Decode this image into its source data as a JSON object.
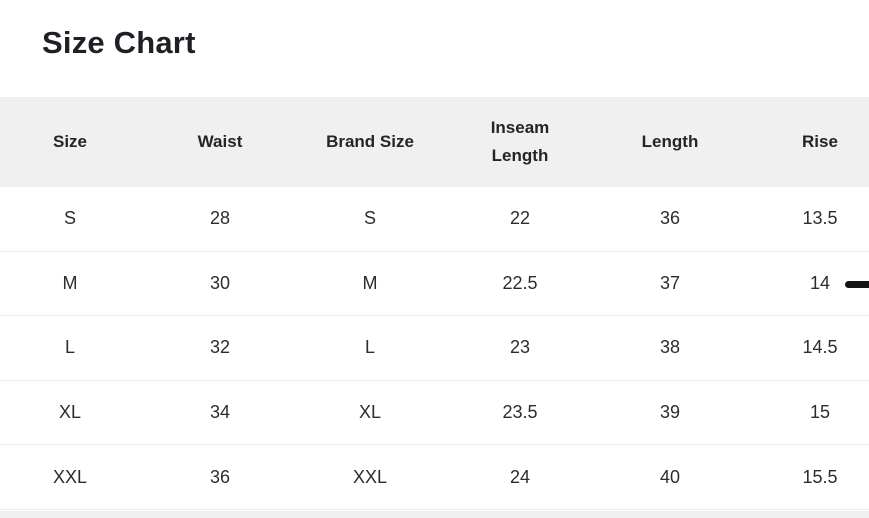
{
  "page": {
    "title": "Size Chart"
  },
  "table": {
    "headers": [
      "Size",
      "Waist",
      "Brand Size",
      "Inseam Length",
      "Length",
      "Rise"
    ],
    "rows": [
      [
        "S",
        "28",
        "S",
        "22",
        "36",
        "13.5"
      ],
      [
        "M",
        "30",
        "M",
        "22.5",
        "37",
        "14"
      ],
      [
        "L",
        "32",
        "L",
        "23",
        "38",
        "14.5"
      ],
      [
        "XL",
        "34",
        "XL",
        "23.5",
        "39",
        "15"
      ],
      [
        "XXL",
        "36",
        "XXL",
        "24",
        "40",
        "15.5"
      ]
    ]
  },
  "colors": {
    "header_background": "#f0f0f0",
    "row_divider": "#ededee",
    "title_text": "#1d2025",
    "cell_text": "#292d31",
    "scroll_indicator": "#131313"
  }
}
